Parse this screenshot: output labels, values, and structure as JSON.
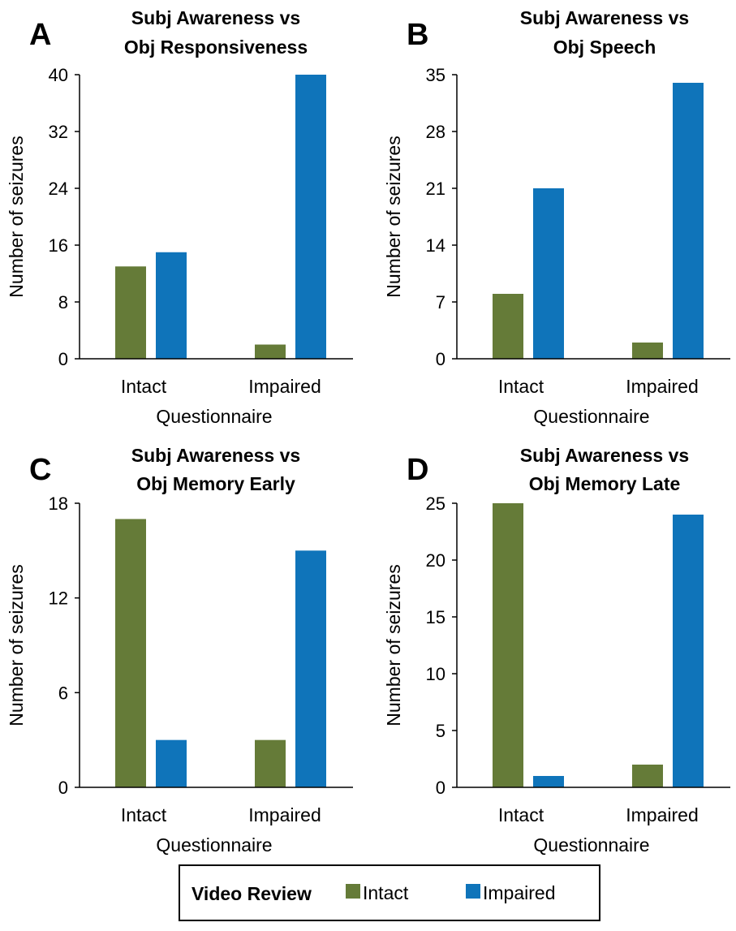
{
  "colors": {
    "intact": "#657b38",
    "impaired": "#0f74ba",
    "axis": "#000000"
  },
  "legend": {
    "title": "Video Review",
    "items": [
      {
        "label": "Intact",
        "color": "#657b38"
      },
      {
        "label": "Impaired",
        "color": "#0f74ba"
      }
    ]
  },
  "chart_data": [
    {
      "type": "bar",
      "panel": "A",
      "title_lines": [
        "Subj Awareness vs",
        "Obj Responsiveness"
      ],
      "xlabel": "Questionnaire",
      "ylabel": "Number of seizures",
      "categories": [
        "Intact",
        "Impaired"
      ],
      "ylim": [
        0,
        40
      ],
      "yticks": [
        0,
        8,
        16,
        24,
        32,
        40
      ],
      "series": [
        {
          "name": "Intact",
          "values": [
            13,
            2
          ]
        },
        {
          "name": "Impaired",
          "values": [
            15,
            40
          ]
        }
      ]
    },
    {
      "type": "bar",
      "panel": "B",
      "title_lines": [
        "Subj Awareness vs",
        "Obj Speech"
      ],
      "xlabel": "Questionnaire",
      "ylabel": "Number of seizures",
      "categories": [
        "Intact",
        "Impaired"
      ],
      "ylim": [
        0,
        35
      ],
      "yticks": [
        0,
        7,
        14,
        21,
        28,
        35
      ],
      "series": [
        {
          "name": "Intact",
          "values": [
            8,
            2
          ]
        },
        {
          "name": "Impaired",
          "values": [
            21,
            34
          ]
        }
      ]
    },
    {
      "type": "bar",
      "panel": "C",
      "title_lines": [
        "Subj Awareness vs",
        "Obj Memory Early"
      ],
      "xlabel": "Questionnaire",
      "ylabel": "Number of seizures",
      "categories": [
        "Intact",
        "Impaired"
      ],
      "ylim": [
        0,
        18
      ],
      "yticks": [
        0,
        6,
        12,
        18
      ],
      "series": [
        {
          "name": "Intact",
          "values": [
            17,
            3
          ]
        },
        {
          "name": "Impaired",
          "values": [
            3,
            15
          ]
        }
      ]
    },
    {
      "type": "bar",
      "panel": "D",
      "title_lines": [
        "Subj Awareness vs",
        "Obj Memory Late"
      ],
      "xlabel": "Questionnaire",
      "ylabel": "Number of seizures",
      "categories": [
        "Intact",
        "Impaired"
      ],
      "ylim": [
        0,
        25
      ],
      "yticks": [
        0,
        5,
        10,
        15,
        20,
        25
      ],
      "series": [
        {
          "name": "Intact",
          "values": [
            25,
            2
          ]
        },
        {
          "name": "Impaired",
          "values": [
            1,
            24
          ]
        }
      ]
    }
  ]
}
